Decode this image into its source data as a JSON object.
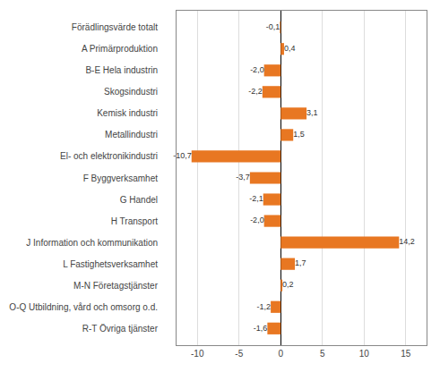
{
  "chart_data": {
    "type": "bar",
    "orientation": "horizontal",
    "categories": [
      "Förädlingsvärde totalt",
      "A Primärproduktion",
      "B-E Hela industrin",
      "Skogsindustri",
      "Kemisk industri",
      "Metallindustri",
      "El- och elektronikindustri",
      "F Byggverksamhet",
      "G Handel",
      "H Transport",
      "J Information och kommunikation",
      "L Fastighetsverksamhet",
      "M-N Företagstjänster",
      "O-Q Utbildning, vård och omsorg o.d.",
      "R-T Övriga tjänster"
    ],
    "values": [
      -0.1,
      0.4,
      -2.0,
      -2.2,
      3.1,
      1.5,
      -10.7,
      -3.7,
      -2.1,
      -2.0,
      14.2,
      1.7,
      0.2,
      -1.2,
      -1.6
    ],
    "value_labels": [
      "-0,1",
      "0,4",
      "-2,0",
      "-2,2",
      "3,1",
      "1,5",
      "-10,7",
      "-3,7",
      "-2,1",
      "-2,0",
      "14,2",
      "1,7",
      "0,2",
      "-1,2",
      "-1,6"
    ],
    "color": "#E87722",
    "xlim": [
      -12.5,
      17.5
    ],
    "xticks": [
      -10,
      -5,
      0,
      5,
      10,
      15
    ],
    "grid": true,
    "data_labels": true
  }
}
